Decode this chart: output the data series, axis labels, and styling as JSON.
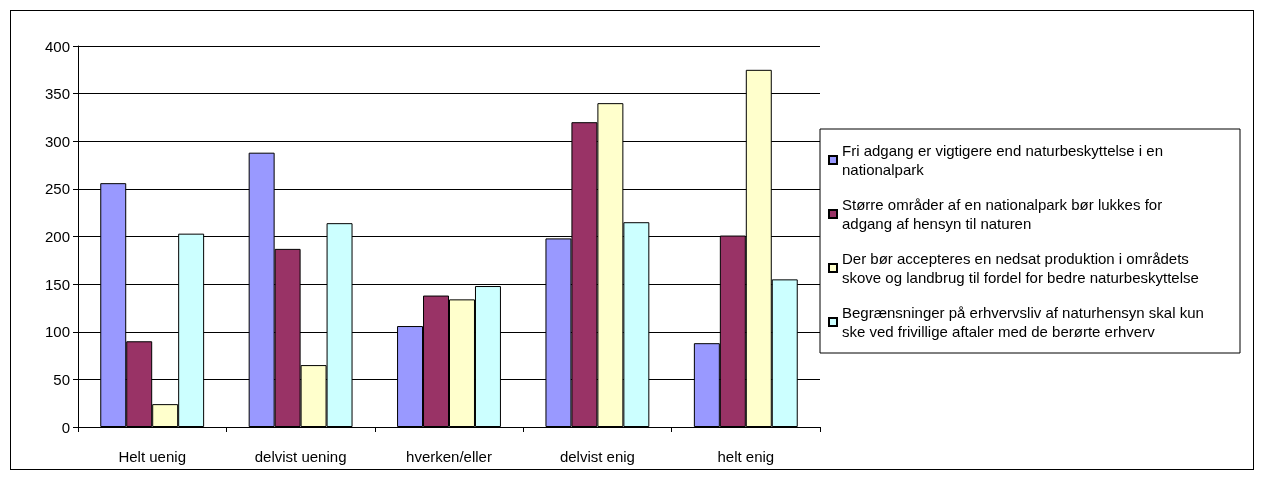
{
  "chart_data": {
    "type": "bar",
    "categories": [
      "Helt uenig",
      "delvist uening",
      "hverken/eller",
      "delvist enig",
      "helt enig"
    ],
    "series": [
      {
        "name": "Fri adgang er vigtigere end naturbeskyttelse i en nationalpark",
        "color": "#9999ff",
        "values": [
          256,
          288,
          106,
          198,
          88
        ]
      },
      {
        "name": "Større områder af en nationalpark bør lukkes for adgang af hensyn til naturen",
        "color": "#993366",
        "values": [
          90,
          187,
          138,
          320,
          201
        ]
      },
      {
        "name": "Der bør accepteres en nedsat produktion i områdets skove og landbrug til fordel for bedre naturbeskyttelse",
        "color": "#ffffcc",
        "values": [
          24,
          65,
          134,
          340,
          375
        ]
      },
      {
        "name": "Begrænsninger på erhvervsliv af naturhensyn skal kun ske ved frivillige aftaler med de berørte erhverv",
        "color": "#ccffff",
        "values": [
          203,
          214,
          148,
          215,
          155
        ]
      }
    ],
    "ylim": [
      0,
      400
    ],
    "yticks": [
      0,
      50,
      100,
      150,
      200,
      250,
      300,
      350,
      400
    ],
    "grid": "y",
    "legend": "right"
  }
}
